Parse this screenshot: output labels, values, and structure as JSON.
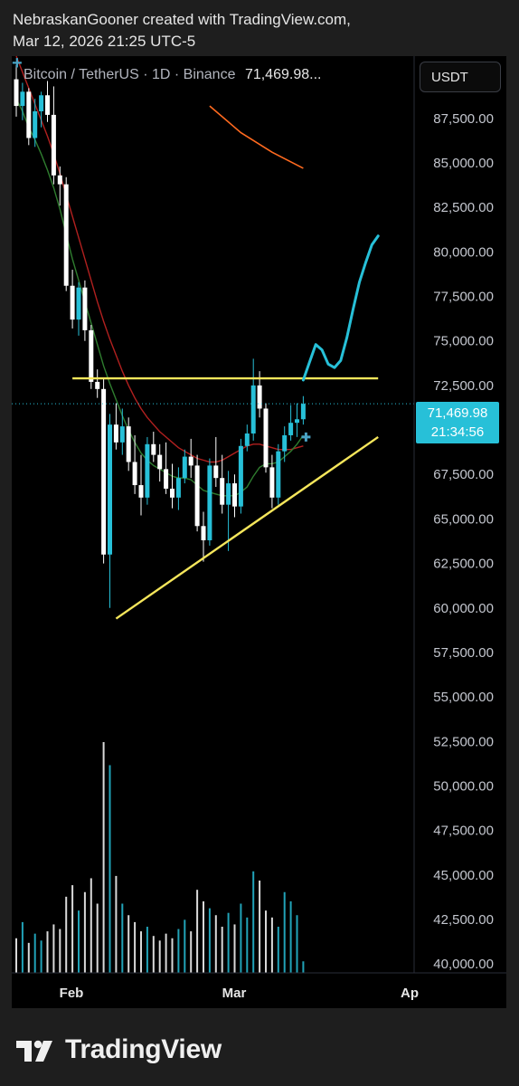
{
  "header": {
    "line1": "NebraskanGooner created with TradingView.com,",
    "line2": "Mar 12, 2026 21:25 UTC-5"
  },
  "symbol": {
    "name": "Bitcoin / TetherUS · 1D · Binance",
    "last_price": "71,469.98..."
  },
  "currency_button": "USDT",
  "price_badge": {
    "price": "71,469.98",
    "countdown": "21:34:56"
  },
  "footer": {
    "brand": "TradingView"
  },
  "colors": {
    "up": "#27c0d8",
    "down": "#ffffff",
    "ma_fast": "#2f7d2f",
    "ma_mid": "#b1201f",
    "ma_slow": "#ff6a1f",
    "trendline": "#f5e65b",
    "projection": "#27c0d8"
  },
  "chart_data": {
    "type": "candlestick",
    "x_ticks": [
      "Feb",
      "Mar",
      "Ap"
    ],
    "y_ticks": [
      "87,500.00",
      "85,000.00",
      "82,500.00",
      "80,000.00",
      "77,500.00",
      "75,000.00",
      "72,500.00",
      "70,000.00",
      "67,500.00",
      "65,000.00",
      "62,500.00",
      "60,000.00",
      "57,500.00",
      "55,000.00",
      "52,500.00",
      "50,000.00",
      "47,500.00",
      "45,000.00",
      "42,500.00",
      "40,000.00"
    ],
    "ylim": [
      39500,
      91000
    ],
    "y_scale": "linear",
    "last_price": 71469.98,
    "candles": [
      {
        "o": 89700,
        "h": 90500,
        "l": 87600,
        "c": 88200
      },
      {
        "o": 88200,
        "h": 89500,
        "l": 87400,
        "c": 89000
      },
      {
        "o": 89000,
        "h": 89200,
        "l": 86000,
        "c": 86400
      },
      {
        "o": 86400,
        "h": 88600,
        "l": 85900,
        "c": 87900
      },
      {
        "o": 87900,
        "h": 89000,
        "l": 87000,
        "c": 88800
      },
      {
        "o": 88800,
        "h": 89600,
        "l": 87300,
        "c": 87700
      },
      {
        "o": 87700,
        "h": 89300,
        "l": 83800,
        "c": 84300
      },
      {
        "o": 84300,
        "h": 84800,
        "l": 82600,
        "c": 83800
      },
      {
        "o": 83800,
        "h": 84200,
        "l": 77800,
        "c": 78100
      },
      {
        "o": 78100,
        "h": 79000,
        "l": 75700,
        "c": 76200
      },
      {
        "o": 76200,
        "h": 78300,
        "l": 75300,
        "c": 78000
      },
      {
        "o": 78000,
        "h": 78400,
        "l": 75000,
        "c": 75600
      },
      {
        "o": 75600,
        "h": 75900,
        "l": 72300,
        "c": 72700
      },
      {
        "o": 72700,
        "h": 73400,
        "l": 71800,
        "c": 72300
      },
      {
        "o": 72300,
        "h": 72900,
        "l": 62500,
        "c": 63000
      },
      {
        "o": 63000,
        "h": 70900,
        "l": 60000,
        "c": 70300
      },
      {
        "o": 70300,
        "h": 71500,
        "l": 68900,
        "c": 69300
      },
      {
        "o": 69300,
        "h": 71200,
        "l": 68600,
        "c": 70200
      },
      {
        "o": 70200,
        "h": 70700,
        "l": 67700,
        "c": 68200
      },
      {
        "o": 68200,
        "h": 69700,
        "l": 66400,
        "c": 66900
      },
      {
        "o": 66900,
        "h": 68600,
        "l": 65200,
        "c": 66200
      },
      {
        "o": 66200,
        "h": 69600,
        "l": 65800,
        "c": 69200
      },
      {
        "o": 69200,
        "h": 69900,
        "l": 68200,
        "c": 68600
      },
      {
        "o": 68600,
        "h": 69200,
        "l": 67100,
        "c": 67800
      },
      {
        "o": 67800,
        "h": 69300,
        "l": 66400,
        "c": 66700
      },
      {
        "o": 66700,
        "h": 68100,
        "l": 65600,
        "c": 66200
      },
      {
        "o": 66200,
        "h": 67900,
        "l": 65500,
        "c": 67300
      },
      {
        "o": 67300,
        "h": 68900,
        "l": 67000,
        "c": 68500
      },
      {
        "o": 68500,
        "h": 69500,
        "l": 67300,
        "c": 68000
      },
      {
        "o": 68000,
        "h": 68600,
        "l": 64300,
        "c": 64600
      },
      {
        "o": 64600,
        "h": 65400,
        "l": 62600,
        "c": 63800
      },
      {
        "o": 63800,
        "h": 68400,
        "l": 63500,
        "c": 68000
      },
      {
        "o": 68000,
        "h": 69600,
        "l": 66800,
        "c": 67300
      },
      {
        "o": 67300,
        "h": 68600,
        "l": 65300,
        "c": 65800
      },
      {
        "o": 65800,
        "h": 67700,
        "l": 63200,
        "c": 67000
      },
      {
        "o": 67000,
        "h": 67500,
        "l": 65100,
        "c": 65700
      },
      {
        "o": 65700,
        "h": 69500,
        "l": 65300,
        "c": 69100
      },
      {
        "o": 69100,
        "h": 70300,
        "l": 68800,
        "c": 69800
      },
      {
        "o": 69800,
        "h": 74000,
        "l": 69400,
        "c": 72500
      },
      {
        "o": 72500,
        "h": 73300,
        "l": 70700,
        "c": 71200
      },
      {
        "o": 71200,
        "h": 71500,
        "l": 67600,
        "c": 67900
      },
      {
        "o": 67900,
        "h": 68600,
        "l": 65600,
        "c": 66200
      },
      {
        "o": 66200,
        "h": 69200,
        "l": 65800,
        "c": 68800
      },
      {
        "o": 68800,
        "h": 70200,
        "l": 68200,
        "c": 69700
      },
      {
        "o": 69700,
        "h": 71400,
        "l": 69400,
        "c": 70400
      },
      {
        "o": 70400,
        "h": 71500,
        "l": 69600,
        "c": 70600
      },
      {
        "o": 70600,
        "h": 71900,
        "l": 70300,
        "c": 71470
      }
    ],
    "volume_relative": [
      0.15,
      0.22,
      0.13,
      0.17,
      0.14,
      0.18,
      0.21,
      0.19,
      0.33,
      0.38,
      0.27,
      0.35,
      0.41,
      0.3,
      1.0,
      0.9,
      0.42,
      0.3,
      0.25,
      0.22,
      0.18,
      0.2,
      0.16,
      0.14,
      0.17,
      0.15,
      0.19,
      0.23,
      0.18,
      0.36,
      0.31,
      0.28,
      0.25,
      0.2,
      0.26,
      0.21,
      0.3,
      0.24,
      0.44,
      0.4,
      0.27,
      0.24,
      0.2,
      0.35,
      0.31,
      0.25,
      0.05
    ],
    "ma_fast": [
      88600,
      87900,
      87000,
      86300,
      85500,
      84600,
      83600,
      82400,
      81000,
      79600,
      78400,
      77200,
      76000,
      74800,
      73600,
      72600,
      71700,
      70800,
      70000,
      69300,
      68700,
      68300,
      68000,
      67800,
      67600,
      67400,
      67300,
      67300,
      67200,
      66900,
      66600,
      66500,
      66400,
      66300,
      66300,
      66300,
      66500,
      66800,
      67400,
      67900,
      68100,
      68100,
      68200,
      68500,
      68800,
      69200,
      69700
    ],
    "ma_mid": [
      91000,
      90100,
      89200,
      88300,
      87400,
      86500,
      85500,
      84400,
      83200,
      82000,
      80800,
      79600,
      78400,
      77200,
      76100,
      75100,
      74200,
      73300,
      72500,
      71800,
      71200,
      70700,
      70300,
      69900,
      69600,
      69300,
      69000,
      68800,
      68600,
      68400,
      68300,
      68200,
      68200,
      68300,
      68500,
      68700,
      68900,
      69100,
      69200,
      69200,
      69100,
      69000,
      68900,
      68900,
      68900,
      69000,
      69100
    ],
    "ma_slow_partial": [
      [
        31,
        88200
      ],
      [
        36,
        86700
      ],
      [
        41,
        85600
      ],
      [
        46,
        84700
      ]
    ],
    "trendlines": [
      {
        "name": "resistance",
        "from": [
          9,
          72900
        ],
        "to": [
          58,
          72900
        ]
      },
      {
        "name": "support",
        "from": [
          16,
          59400
        ],
        "to": [
          58,
          69600
        ]
      }
    ],
    "projection": [
      [
        46,
        72800
      ],
      [
        47,
        73800
      ],
      [
        48,
        74800
      ],
      [
        49,
        74500
      ],
      [
        50,
        73700
      ],
      [
        51,
        73500
      ],
      [
        52,
        73900
      ],
      [
        53,
        75200
      ],
      [
        54,
        76800
      ],
      [
        55,
        78300
      ],
      [
        56,
        79400
      ],
      [
        57,
        80400
      ],
      [
        58,
        80900
      ]
    ]
  }
}
